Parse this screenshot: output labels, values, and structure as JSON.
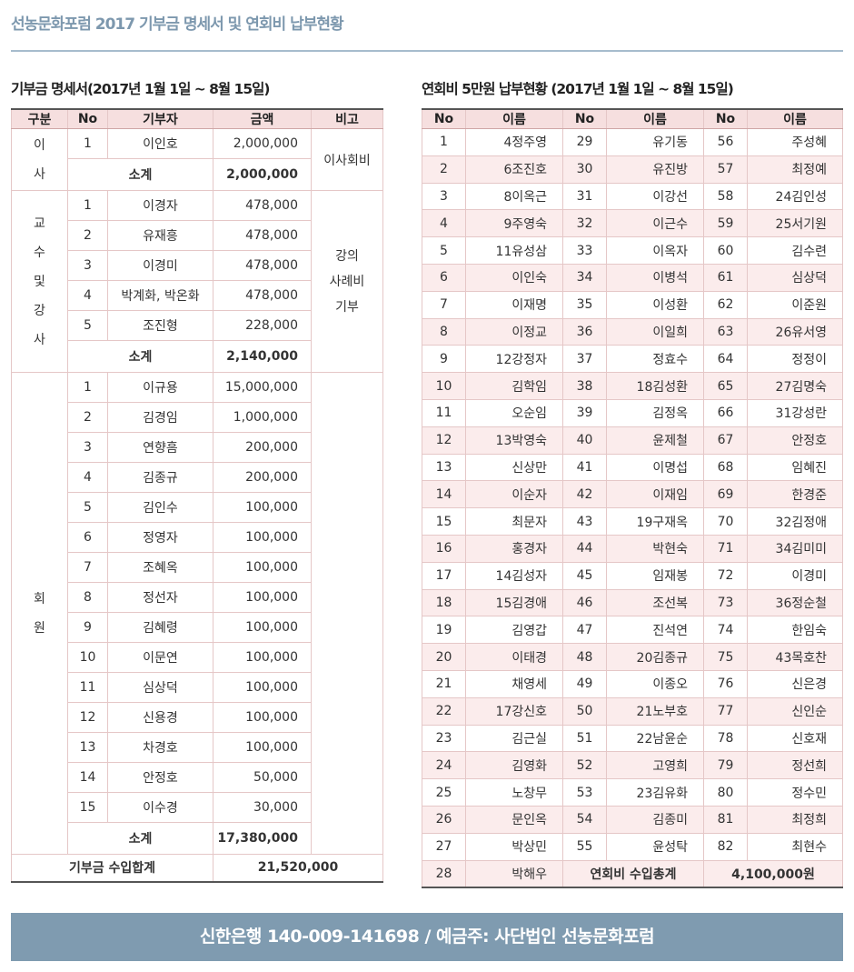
{
  "page_title": "선농문화포럼 2017 기부금 명세서 및 연회비 납부현황",
  "donation": {
    "section_title": "기부금 명세서(2017년 1월 1일 ~ 8월 15일)",
    "headers": [
      "구분",
      "No",
      "기부자",
      "금액",
      "비고"
    ],
    "groups": [
      {
        "label_chars": [
          "이",
          "사"
        ],
        "note": "이사회비",
        "rows": [
          {
            "no": "1",
            "name": "이인호",
            "amount": "2,000,000"
          }
        ],
        "subtotal_label": "소계",
        "subtotal": "2,000,000"
      },
      {
        "label_chars": [
          "교",
          "수",
          "및",
          "강",
          "사"
        ],
        "note_lines": [
          "강의",
          "사례비",
          "기부"
        ],
        "rows": [
          {
            "no": "1",
            "name": "이경자",
            "amount": "478,000"
          },
          {
            "no": "2",
            "name": "유재흥",
            "amount": "478,000"
          },
          {
            "no": "3",
            "name": "이경미",
            "amount": "478,000"
          },
          {
            "no": "4",
            "name": "박계화, 박온화",
            "amount": "478,000"
          },
          {
            "no": "5",
            "name": "조진형",
            "amount": "228,000"
          }
        ],
        "subtotal_label": "소계",
        "subtotal": "2,140,000"
      },
      {
        "label_chars": [
          "회",
          "원"
        ],
        "rows": [
          {
            "no": "1",
            "name": "이규용",
            "amount": "15,000,000"
          },
          {
            "no": "2",
            "name": "김경임",
            "amount": "1,000,000"
          },
          {
            "no": "3",
            "name": "연향흠",
            "amount": "200,000"
          },
          {
            "no": "4",
            "name": "김종규",
            "amount": "200,000"
          },
          {
            "no": "5",
            "name": "김인수",
            "amount": "100,000"
          },
          {
            "no": "6",
            "name": "정영자",
            "amount": "100,000"
          },
          {
            "no": "7",
            "name": "조혜옥",
            "amount": "100,000"
          },
          {
            "no": "8",
            "name": "정선자",
            "amount": "100,000"
          },
          {
            "no": "9",
            "name": "김혜령",
            "amount": "100,000"
          },
          {
            "no": "10",
            "name": "이문연",
            "amount": "100,000"
          },
          {
            "no": "11",
            "name": "심상덕",
            "amount": "100,000"
          },
          {
            "no": "12",
            "name": "신용경",
            "amount": "100,000"
          },
          {
            "no": "13",
            "name": "차경호",
            "amount": "100,000"
          },
          {
            "no": "14",
            "name": "안정호",
            "amount": "50,000"
          },
          {
            "no": "15",
            "name": "이수경",
            "amount": "30,000"
          }
        ],
        "subtotal_label": "소계",
        "subtotal": "17,380,000"
      }
    ],
    "grand_total_label": "기부금 수입합계",
    "grand_total": "21,520,000"
  },
  "dues": {
    "section_title": "연회비 5만원 납부현황 (2017년 1월 1일 ~ 8월 15일)",
    "headers": [
      "No",
      "이름",
      "No",
      "이름",
      "No",
      "이름"
    ],
    "rows": [
      [
        "1",
        "4정주영",
        "29",
        "유기동",
        "56",
        "주성혜"
      ],
      [
        "2",
        "6조진호",
        "30",
        "유진방",
        "57",
        "최정예"
      ],
      [
        "3",
        "8이옥근",
        "31",
        "이강선",
        "58",
        "24김인성"
      ],
      [
        "4",
        "9주영숙",
        "32",
        "이근수",
        "59",
        "25서기원"
      ],
      [
        "5",
        "11유성삼",
        "33",
        "이옥자",
        "60",
        "김수련"
      ],
      [
        "6",
        "이인숙",
        "34",
        "이병석",
        "61",
        "심상덕"
      ],
      [
        "7",
        "이재명",
        "35",
        "이성환",
        "62",
        "이준원"
      ],
      [
        "8",
        "이정교",
        "36",
        "이일희",
        "63",
        "26유서영"
      ],
      [
        "9",
        "12강정자",
        "37",
        "정효수",
        "64",
        "정정이"
      ],
      [
        "10",
        "김학임",
        "38",
        "18김성환",
        "65",
        "27김명숙"
      ],
      [
        "11",
        "오순임",
        "39",
        "김정옥",
        "66",
        "31강성란"
      ],
      [
        "12",
        "13박영숙",
        "40",
        "윤제철",
        "67",
        "안정호"
      ],
      [
        "13",
        "신상만",
        "41",
        "이명섭",
        "68",
        "임혜진"
      ],
      [
        "14",
        "이순자",
        "42",
        "이재임",
        "69",
        "한경준"
      ],
      [
        "15",
        "최문자",
        "43",
        "19구재옥",
        "70",
        "32김정애"
      ],
      [
        "16",
        "홍경자",
        "44",
        "박현숙",
        "71",
        "34김미미"
      ],
      [
        "17",
        "14김성자",
        "45",
        "임재봉",
        "72",
        "이경미"
      ],
      [
        "18",
        "15김경애",
        "46",
        "조선복",
        "73",
        "36정순철"
      ],
      [
        "19",
        "김영갑",
        "47",
        "진석연",
        "74",
        "한임숙"
      ],
      [
        "20",
        "이태경",
        "48",
        "20김종규",
        "75",
        "43목호찬"
      ],
      [
        "21",
        "채영세",
        "49",
        "이종오",
        "76",
        "신은경"
      ],
      [
        "22",
        "17강신호",
        "50",
        "21노부호",
        "77",
        "신인순"
      ],
      [
        "23",
        "김근실",
        "51",
        "22남윤순",
        "78",
        "신호재"
      ],
      [
        "24",
        "김영화",
        "52",
        "고영희",
        "79",
        "정선희"
      ],
      [
        "25",
        "노창무",
        "53",
        "23김유화",
        "80",
        "정수민"
      ],
      [
        "26",
        "문인옥",
        "54",
        "김종미",
        "81",
        "최정희"
      ],
      [
        "27",
        "박상민",
        "55",
        "윤성탁",
        "82",
        "최현수"
      ]
    ],
    "last_row": {
      "no": "28",
      "name": "박해우",
      "total_label": "연회비 수입총계",
      "total": "4,100,000원"
    }
  },
  "footer": {
    "text": "신한은행 140-009-141698 / 예금주: 사단법인 선농문화포럼"
  },
  "colors": {
    "title": "#7d98ae",
    "header_bg": "#f6dfdf",
    "row_pink": "#fbecec",
    "footer_bg": "#7f9bb0"
  }
}
